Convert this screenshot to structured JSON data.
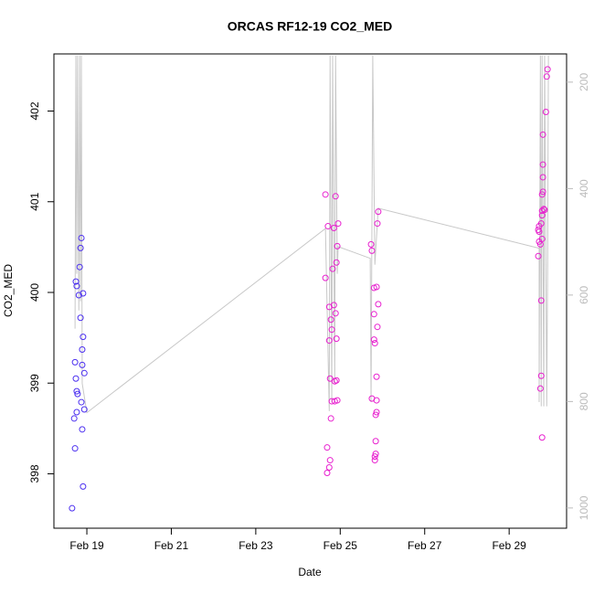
{
  "chart_data": {
    "type": "scatter",
    "title": "ORCAS RF12-19 CO2_MED",
    "x_label": "Date",
    "y_label": "CO2_MED",
    "xlim": [
      18.22,
      30.36
    ],
    "xticks": [
      {
        "value": 19,
        "label": "Feb 19"
      },
      {
        "value": 21,
        "label": "Feb 21"
      },
      {
        "value": 23,
        "label": "Feb 23"
      },
      {
        "value": 25,
        "label": "Feb 25"
      },
      {
        "value": 27,
        "label": "Feb 27"
      },
      {
        "value": 29,
        "label": "Feb 29"
      }
    ],
    "ylim": [
      397.4,
      402.63
    ],
    "yticks": [
      398,
      399,
      400,
      401,
      402
    ],
    "y2lim": [
      1038,
      147
    ],
    "y2ticks": [
      200,
      400,
      600,
      800,
      1000
    ],
    "y2_color": "#bbbbbb",
    "series": [
      {
        "type": "line",
        "axis": "y2",
        "color": "#c8c8c8",
        "x": [
          18.72,
          18.74,
          18.76,
          18.78,
          18.81,
          18.83,
          18.85,
          18.87,
          18.89,
          19.0,
          24.65,
          24.74,
          24.76,
          24.8,
          24.82,
          24.87,
          24.89,
          24.93,
          24.95,
          25.71,
          25.73,
          25.77,
          25.82,
          25.9,
          29.71,
          29.71,
          29.74,
          29.76,
          29.78,
          29.82,
          29.84,
          29.89,
          29.91,
          29.93
        ],
        "values": [
          663,
          150,
          560,
          150,
          629,
          150,
          612,
          150,
          766,
          821,
          475,
          818,
          150,
          801,
          150,
          766,
          150,
          560,
          509,
          531,
          801,
          150,
          543,
          437,
          512,
          801,
          150,
          809,
          150,
          809,
          150,
          809,
          560,
          150
        ]
      },
      {
        "type": "points",
        "color": "#4b2ff0",
        "x": [
          18.65,
          18.72,
          18.7,
          18.72,
          18.74,
          18.76,
          18.76,
          18.78,
          18.81,
          18.74,
          18.76,
          18.83,
          18.85,
          18.87,
          18.85,
          18.87,
          18.89,
          18.89,
          18.89,
          18.91,
          18.94,
          18.94,
          18.91,
          18.91
        ],
        "values": [
          397.62,
          398.28,
          398.61,
          399.23,
          399.05,
          398.68,
          398.91,
          398.88,
          399.97,
          400.12,
          400.07,
          400.28,
          400.49,
          400.6,
          399.72,
          398.79,
          398.49,
          399.2,
          399.37,
          399.51,
          398.71,
          399.11,
          399.99,
          397.86
        ]
      },
      {
        "type": "points",
        "color": "#e81fcf",
        "x": [
          24.65,
          24.65,
          24.69,
          24.69,
          24.74,
          24.76,
          24.71,
          24.74,
          24.74,
          24.76,
          24.78,
          24.8,
          24.78,
          24.8,
          24.82,
          24.85,
          24.85,
          24.87,
          24.87,
          24.89,
          24.89,
          24.91,
          24.91,
          24.93,
          24.95,
          24.91,
          24.93,
          25.73,
          25.75,
          25.75,
          25.8,
          25.8,
          25.8,
          25.82,
          25.82,
          25.82,
          25.84,
          25.84,
          25.84,
          25.86,
          25.86,
          25.86,
          25.86,
          25.88,
          25.88,
          25.9,
          25.9,
          29.69,
          29.69,
          29.71,
          29.71,
          29.74,
          29.74,
          29.76,
          29.76,
          29.78,
          29.78,
          29.78,
          29.78,
          29.78,
          29.76,
          29.8,
          29.8,
          29.8,
          29.8,
          29.82,
          29.87,
          29.89,
          29.91,
          29.84,
          29.71
        ],
        "values": [
          401.08,
          400.16,
          398.29,
          398.01,
          398.07,
          398.15,
          400.73,
          399.84,
          399.47,
          399.05,
          399.7,
          398.8,
          398.61,
          399.59,
          400.26,
          399.86,
          400.71,
          399.02,
          398.8,
          401.06,
          399.77,
          400.33,
          399.03,
          400.51,
          400.76,
          399.49,
          398.81,
          400.53,
          400.46,
          398.83,
          400.05,
          399.76,
          399.48,
          399.44,
          398.19,
          398.15,
          398.22,
          398.65,
          398.36,
          398.68,
          399.07,
          398.81,
          400.06,
          399.62,
          400.76,
          399.87,
          400.89,
          400.4,
          400.69,
          400.67,
          400.73,
          400.53,
          398.94,
          399.08,
          399.91,
          398.4,
          400.85,
          400.59,
          400.9,
          401.08,
          400.76,
          401.27,
          401.41,
          401.74,
          401.11,
          400.92,
          401.99,
          402.38,
          402.46,
          400.91,
          400.56
        ]
      }
    ]
  }
}
